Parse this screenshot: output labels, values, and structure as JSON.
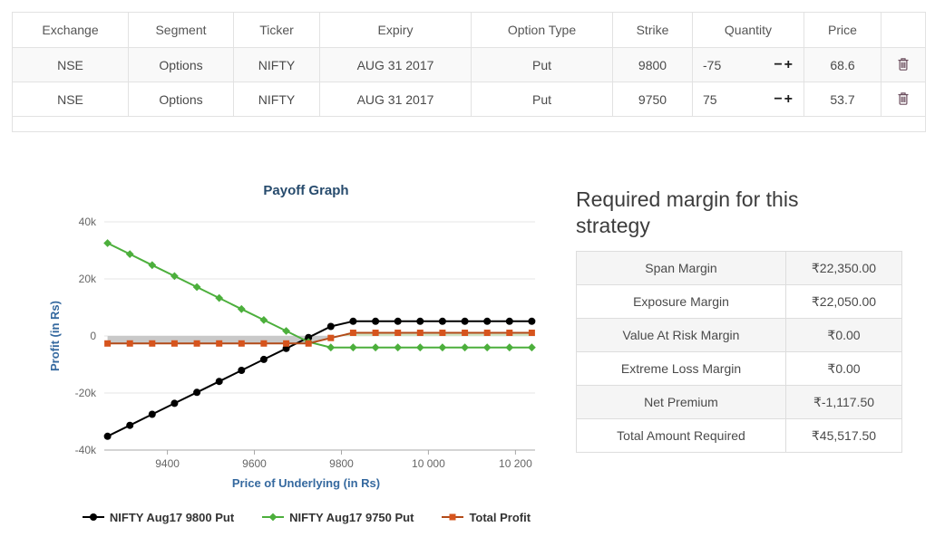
{
  "positions_table": {
    "headers": [
      "Exchange",
      "Segment",
      "Ticker",
      "Expiry",
      "Option Type",
      "Strike",
      "Quantity",
      "Price",
      ""
    ],
    "rows": [
      {
        "exchange": "NSE",
        "segment": "Options",
        "ticker": "NIFTY",
        "expiry": "AUG 31 2017",
        "option_type": "Put",
        "strike": "9800",
        "quantity": "-75",
        "price": "68.6"
      },
      {
        "exchange": "NSE",
        "segment": "Options",
        "ticker": "NIFTY",
        "expiry": "AUG 31 2017",
        "option_type": "Put",
        "strike": "9750",
        "quantity": "75",
        "price": "53.7"
      }
    ],
    "stepper": {
      "minus": "−",
      "plus": "+"
    }
  },
  "chart_data": {
    "type": "line",
    "title": "Payoff Graph",
    "xlabel": "Price of Underlying (in Rs)",
    "ylabel": "Profit (in Rs)",
    "xlim": [
      9255,
      10245
    ],
    "ylim": [
      -40000,
      40000
    ],
    "grid": "horizontal",
    "legend_position": "bottom",
    "fill_positive": "#cfe2c2",
    "fill_negative": "#c9c9c9",
    "xticks": [
      {
        "v": 9400,
        "label": "9400"
      },
      {
        "v": 9600,
        "label": "9600"
      },
      {
        "v": 9800,
        "label": "9800"
      },
      {
        "v": 10000,
        "label": "10 000"
      },
      {
        "v": 10200,
        "label": "10 200"
      }
    ],
    "yticks": [
      {
        "v": 40000,
        "label": "40k"
      },
      {
        "v": 20000,
        "label": "20k"
      },
      {
        "v": 0,
        "label": "0"
      },
      {
        "v": -20000,
        "label": "-20k"
      },
      {
        "v": -40000,
        "label": "-40k"
      }
    ],
    "x": [
      9262.5,
      9313.8,
      9365.1,
      9416.4,
      9467.8,
      9519.1,
      9570.4,
      9621.7,
      9673,
      9724.3,
      9775.7,
      9827,
      9878.3,
      9929.6,
      9980.9,
      10032.2,
      10083.6,
      10134.9,
      10186.2,
      10237.5
    ],
    "series": [
      {
        "name": "NIFTY Aug17 9800 Put",
        "color": "#000000",
        "marker": "circle",
        "values": [
          -35167.5,
          -31320,
          -27472.5,
          -23625,
          -19770,
          -15922.5,
          -12075,
          -8227.5,
          -4380,
          -532.5,
          3322.5,
          5145,
          5145,
          5145,
          5145,
          5145,
          5145,
          5145,
          5145,
          5145
        ]
      },
      {
        "name": "NIFTY Aug17 9750 Put",
        "color": "#4caf3c",
        "marker": "diamond",
        "values": [
          32535,
          28687.5,
          24840,
          20992.5,
          17137.5,
          13290,
          9442.5,
          5595,
          1747.5,
          -2100,
          -4027.5,
          -4027.5,
          -4027.5,
          -4027.5,
          -4027.5,
          -4027.5,
          -4027.5,
          -4027.5,
          -4027.5,
          -4027.5
        ]
      },
      {
        "name": "Total Profit",
        "color": "#d6541d",
        "line_color": "#b24a18",
        "marker": "square",
        "fill": true,
        "values": [
          -2632.5,
          -2632.5,
          -2632.5,
          -2632.5,
          -2632.5,
          -2632.5,
          -2632.5,
          -2632.5,
          -2632.5,
          -2632.5,
          -705,
          1117.5,
          1117.5,
          1117.5,
          1117.5,
          1117.5,
          1117.5,
          1117.5,
          1117.5,
          1117.5
        ]
      }
    ]
  },
  "margin_panel": {
    "title": "Required margin for this strategy",
    "rows": [
      {
        "label": "Span Margin",
        "value": "₹22,350.00"
      },
      {
        "label": "Exposure Margin",
        "value": "₹22,050.00"
      },
      {
        "label": "Value At Risk Margin",
        "value": "₹0.00"
      },
      {
        "label": "Extreme Loss Margin",
        "value": "₹0.00"
      },
      {
        "label": "Net Premium",
        "value": "₹-1,117.50"
      },
      {
        "label": "Total Amount Required",
        "value": "₹45,517.50"
      }
    ]
  }
}
